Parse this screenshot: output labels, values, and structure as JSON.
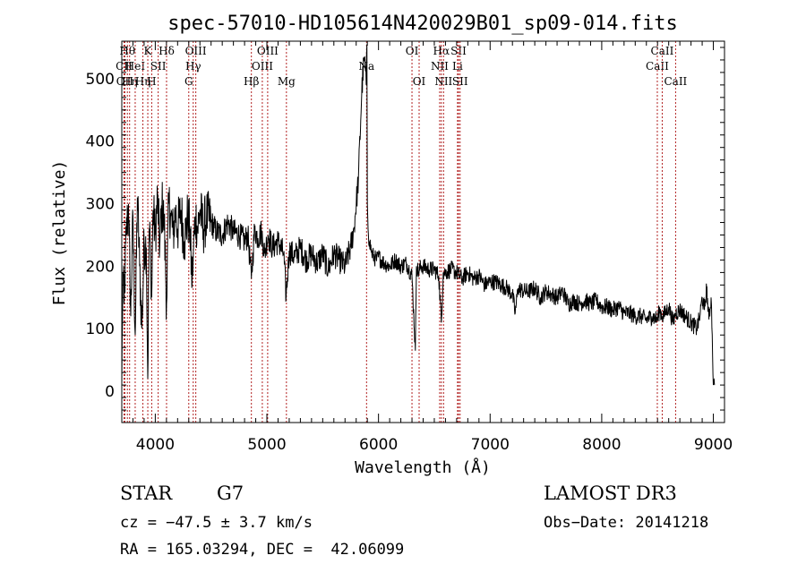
{
  "chart_data": {
    "type": "line",
    "title": "spec-57010-HD105614N420029B01_sp09-014.fits",
    "xlabel": "Wavelength (Å)",
    "ylabel": "Flux (relative)",
    "xlim": [
      3700,
      9100
    ],
    "ylim": [
      -50,
      560
    ],
    "xticks": [
      4000,
      5000,
      6000,
      7000,
      8000,
      9000
    ],
    "yticks": [
      0,
      100,
      200,
      300,
      400,
      500
    ],
    "grid": false,
    "series": [
      {
        "name": "flux",
        "x": [
          3700,
          3710,
          3720,
          3740,
          3760,
          3780,
          3800,
          3820,
          3840,
          3860,
          3880,
          3900,
          3920,
          3933,
          3945,
          3960,
          3968,
          3980,
          4000,
          4020,
          4040,
          4060,
          4080,
          4101,
          4120,
          4140,
          4160,
          4180,
          4200,
          4230,
          4260,
          4290,
          4310,
          4330,
          4340,
          4360,
          4380,
          4400,
          4430,
          4460,
          4500,
          4550,
          4600,
          4650,
          4700,
          4750,
          4800,
          4830,
          4861,
          4890,
          4920,
          4950,
          4980,
          5010,
          5050,
          5100,
          5150,
          5172,
          5200,
          5250,
          5300,
          5350,
          5400,
          5450,
          5500,
          5550,
          5600,
          5650,
          5700,
          5750,
          5780,
          5820,
          5850,
          5870,
          5880,
          5890,
          5896,
          5900,
          5910,
          5920,
          5940,
          5980,
          6000,
          6050,
          6100,
          6150,
          6200,
          6250,
          6300,
          6330,
          6340,
          6360,
          6380,
          6400,
          6450,
          6500,
          6540,
          6563,
          6580,
          6600,
          6650,
          6700,
          6750,
          6800,
          6850,
          6900,
          6950,
          7000,
          7050,
          7100,
          7150,
          7200,
          7225,
          7250,
          7300,
          7350,
          7400,
          7450,
          7500,
          7550,
          7600,
          7650,
          7700,
          7750,
          7800,
          7850,
          7900,
          7950,
          8000,
          8050,
          8100,
          8150,
          8200,
          8250,
          8300,
          8350,
          8400,
          8450,
          8498,
          8520,
          8542,
          8570,
          8600,
          8640,
          8662,
          8700,
          8750,
          8800,
          8850,
          8880,
          8900,
          8920,
          8940,
          8960,
          8980,
          8990,
          9000,
          9010
        ],
        "values": [
          10,
          190,
          140,
          250,
          300,
          120,
          280,
          90,
          310,
          200,
          100,
          240,
          230,
          20,
          260,
          210,
          150,
          290,
          250,
          310,
          230,
          300,
          270,
          140,
          300,
          280,
          250,
          290,
          260,
          290,
          240,
          280,
          260,
          170,
          220,
          280,
          260,
          290,
          260,
          280,
          270,
          255,
          250,
          270,
          255,
          250,
          240,
          250,
          180,
          260,
          245,
          255,
          220,
          250,
          230,
          240,
          220,
          150,
          225,
          215,
          230,
          210,
          220,
          205,
          220,
          195,
          220,
          210,
          200,
          230,
          260,
          340,
          480,
          530,
          520,
          490,
          555,
          300,
          250,
          240,
          220,
          210,
          215,
          205,
          200,
          210,
          200,
          205,
          185,
          65,
          200,
          190,
          200,
          200,
          195,
          195,
          185,
          110,
          190,
          190,
          195,
          190,
          180,
          190,
          180,
          185,
          170,
          175,
          175,
          170,
          165,
          155,
          125,
          165,
          160,
          160,
          165,
          150,
          160,
          155,
          150,
          160,
          140,
          145,
          140,
          145,
          140,
          145,
          135,
          135,
          130,
          135,
          125,
          125,
          120,
          120,
          115,
          120,
          115,
          130,
          120,
          125,
          135,
          110,
          125,
          130,
          120,
          110,
          100,
          120,
          150,
          130,
          165,
          115,
          150,
          90,
          10,
          10
        ]
      }
    ],
    "lines": [
      {
        "wl": 3720,
        "label": "CII",
        "row": 2
      },
      {
        "wl": 3727,
        "label": "OII",
        "row": 3
      },
      {
        "wl": 3750,
        "label": "Hθ",
        "row": 1
      },
      {
        "wl": 3770,
        "label": "Hη",
        "row": 3
      },
      {
        "wl": 3820,
        "label": "HeI",
        "row": 2
      },
      {
        "wl": 3889,
        "label": "Hη",
        "row": 3
      },
      {
        "wl": 3933,
        "label": "K",
        "row": 1
      },
      {
        "wl": 3968,
        "label": "H",
        "row": 3
      },
      {
        "wl": 4026,
        "label": "SII",
        "row": 2
      },
      {
        "wl": 4101,
        "label": "Hδ",
        "row": 1
      },
      {
        "wl": 4300,
        "label": "G",
        "row": 3
      },
      {
        "wl": 4340,
        "label": "Hγ",
        "row": 2
      },
      {
        "wl": 4363,
        "label": "OIII",
        "row": 1
      },
      {
        "wl": 4861,
        "label": "Hβ",
        "row": 3
      },
      {
        "wl": 4959,
        "label": "OIII",
        "row": 2
      },
      {
        "wl": 5007,
        "label": "OIII",
        "row": 1
      },
      {
        "wl": 5175,
        "label": "Mg",
        "row": 3
      },
      {
        "wl": 5893,
        "label": "Na",
        "row": 2
      },
      {
        "wl": 6300,
        "label": "OI",
        "row": 1
      },
      {
        "wl": 6364,
        "label": "OI",
        "row": 3
      },
      {
        "wl": 6548,
        "label": "NII",
        "row": 2
      },
      {
        "wl": 6563,
        "label": "Hα",
        "row": 1
      },
      {
        "wl": 6583,
        "label": "NII",
        "row": 3
      },
      {
        "wl": 6708,
        "label": "Li",
        "row": 2
      },
      {
        "wl": 6717,
        "label": "SII",
        "row": 1
      },
      {
        "wl": 6731,
        "label": "SII",
        "row": 3
      },
      {
        "wl": 8498,
        "label": "CaII",
        "row": 2
      },
      {
        "wl": 8542,
        "label": "CaII",
        "row": 1
      },
      {
        "wl": 8662,
        "label": "CaII",
        "row": 3
      }
    ]
  },
  "info": {
    "object_type": "STAR",
    "subclass": "G7",
    "survey": "LAMOST DR3",
    "cz": "cz = −47.5 ± 3.7 km/s",
    "obs_date": "Obs−Date: 20141218",
    "coords": "RA = 165.03294, DEC =  42.06099"
  }
}
